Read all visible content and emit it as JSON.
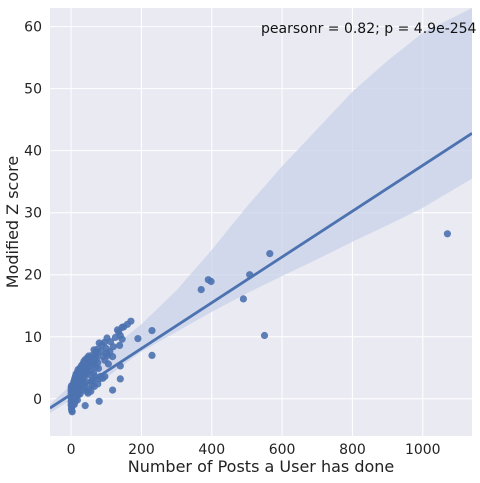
{
  "chart_data": {
    "type": "scatter",
    "xlabel": "Number of Posts a User has done",
    "ylabel": "Modified Z score",
    "xlim": [
      -60,
      1140
    ],
    "ylim": [
      -6,
      63
    ],
    "xticks": [
      0,
      200,
      400,
      600,
      800,
      1000
    ],
    "yticks": [
      0,
      10,
      20,
      30,
      40,
      50,
      60
    ],
    "xtick_labels": [
      "0",
      "200",
      "400",
      "600",
      "800",
      "1000"
    ],
    "ytick_labels": [
      "0",
      "10",
      "20",
      "30",
      "40",
      "50",
      "60"
    ],
    "grid": true,
    "annotation": "pearsonr = 0.82; p = 4.9e-254",
    "regression": {
      "x_start": -60,
      "y_start": -1.5,
      "x_end": 1140,
      "y_end": 42.8
    },
    "confidence_band": {
      "upper": [
        [
          -60,
          -0.9
        ],
        [
          100,
          7.5
        ],
        [
          200,
          12.0
        ],
        [
          300,
          17.5
        ],
        [
          400,
          24.0
        ],
        [
          500,
          31.0
        ],
        [
          600,
          37.5
        ],
        [
          700,
          43.5
        ],
        [
          800,
          49.5
        ],
        [
          900,
          54.5
        ],
        [
          1000,
          59.0
        ],
        [
          1140,
          63.0
        ]
      ],
      "lower": [
        [
          -60,
          -2.3
        ],
        [
          100,
          3.4
        ],
        [
          200,
          7.6
        ],
        [
          300,
          10.8
        ],
        [
          400,
          14.0
        ],
        [
          500,
          17.0
        ],
        [
          600,
          19.8
        ],
        [
          700,
          22.5
        ],
        [
          800,
          25.3
        ],
        [
          900,
          28.0
        ],
        [
          1000,
          30.8
        ],
        [
          1140,
          35.5
        ]
      ]
    },
    "colors": {
      "points": "#4c72b0",
      "line": "#4c72b0",
      "band": "#c8d2e8",
      "plot_bg": "#eaeaf2",
      "grid": "#ffffff"
    },
    "points": [
      [
        1070,
        26.6
      ],
      [
        565,
        23.4
      ],
      [
        508,
        20.0
      ],
      [
        390,
        19.2
      ],
      [
        398,
        18.9
      ],
      [
        370,
        17.6
      ],
      [
        490,
        16.1
      ],
      [
        550,
        10.2
      ],
      [
        230,
        11.0
      ],
      [
        230,
        7.0
      ],
      [
        190,
        9.7
      ],
      [
        170,
        12.5
      ],
      [
        160,
        12.0
      ],
      [
        145,
        11.5
      ],
      [
        135,
        10.8
      ],
      [
        140,
        10.2
      ],
      [
        145,
        9.6
      ],
      [
        138,
        8.6
      ],
      [
        140,
        5.3
      ],
      [
        140,
        3.2
      ],
      [
        118,
        1.4
      ],
      [
        102,
        9.8
      ],
      [
        95,
        9.1
      ],
      [
        100,
        8.1
      ],
      [
        88,
        8.7
      ],
      [
        120,
        8.4
      ],
      [
        110,
        7.6
      ],
      [
        118,
        6.8
      ],
      [
        80,
        9.0
      ],
      [
        75,
        8.0
      ],
      [
        70,
        7.6
      ],
      [
        65,
        7.9
      ],
      [
        60,
        7.0
      ],
      [
        55,
        6.7
      ],
      [
        50,
        6.2
      ],
      [
        48,
        5.7
      ],
      [
        45,
        5.2
      ],
      [
        42,
        5.0
      ],
      [
        40,
        4.6
      ],
      [
        38,
        4.2
      ],
      [
        35,
        4.0
      ],
      [
        30,
        3.6
      ],
      [
        28,
        3.3
      ],
      [
        25,
        3.0
      ],
      [
        22,
        2.6
      ],
      [
        20,
        2.3
      ],
      [
        18,
        2.1
      ],
      [
        15,
        1.7
      ],
      [
        12,
        1.5
      ],
      [
        10,
        1.2
      ],
      [
        8,
        0.9
      ],
      [
        6,
        0.6
      ],
      [
        4,
        0.3
      ],
      [
        2,
        0.0
      ],
      [
        1,
        -0.3
      ],
      [
        3,
        -0.6
      ],
      [
        5,
        -0.9
      ],
      [
        2,
        -1.3
      ],
      [
        1,
        -1.6
      ],
      [
        2,
        -1.9
      ],
      [
        3,
        -2.1
      ],
      [
        0,
        -1.0
      ],
      [
        0,
        -0.5
      ],
      [
        0,
        0.2
      ],
      [
        0,
        0.8
      ],
      [
        0,
        1.3
      ],
      [
        0,
        1.8
      ],
      [
        1,
        2.1
      ],
      [
        2,
        1.4
      ],
      [
        4,
        1.9
      ],
      [
        6,
        2.4
      ],
      [
        8,
        2.8
      ],
      [
        10,
        3.2
      ],
      [
        12,
        3.6
      ],
      [
        14,
        4.0
      ],
      [
        16,
        3.4
      ],
      [
        18,
        4.3
      ],
      [
        20,
        4.7
      ],
      [
        22,
        3.9
      ],
      [
        24,
        4.5
      ],
      [
        26,
        5.0
      ],
      [
        30,
        5.4
      ],
      [
        32,
        4.8
      ],
      [
        34,
        5.6
      ],
      [
        36,
        6.0
      ],
      [
        40,
        6.3
      ],
      [
        44,
        5.8
      ],
      [
        46,
        6.6
      ],
      [
        50,
        6.9
      ],
      [
        52,
        5.2
      ],
      [
        56,
        4.6
      ],
      [
        58,
        5.9
      ],
      [
        62,
        6.2
      ],
      [
        66,
        5.6
      ],
      [
        70,
        5.1
      ],
      [
        72,
        6.4
      ],
      [
        76,
        5.8
      ],
      [
        78,
        4.9
      ],
      [
        84,
        3.6
      ],
      [
        90,
        3.3
      ],
      [
        96,
        3.6
      ],
      [
        80,
        3.2
      ],
      [
        76,
        2.4
      ],
      [
        60,
        2.2
      ],
      [
        50,
        1.6
      ],
      [
        44,
        1.2
      ],
      [
        40,
        2.8
      ],
      [
        36,
        2.0
      ],
      [
        30,
        1.4
      ],
      [
        26,
        0.8
      ],
      [
        20,
        0.6
      ],
      [
        18,
        -0.2
      ],
      [
        14,
        0.3
      ],
      [
        12,
        -0.4
      ],
      [
        9,
        -0.9
      ],
      [
        10,
        0.4
      ],
      [
        7,
        1.6
      ],
      [
        5,
        1.0
      ],
      [
        30,
        2.8
      ],
      [
        34,
        3.4
      ],
      [
        28,
        2.2
      ],
      [
        24,
        1.8
      ],
      [
        16,
        2.6
      ],
      [
        22,
        1.0
      ],
      [
        38,
        2.4
      ],
      [
        42,
        3.8
      ],
      [
        46,
        4.4
      ],
      [
        54,
        3.9
      ],
      [
        58,
        2.9
      ],
      [
        64,
        4.1
      ],
      [
        68,
        3.6
      ],
      [
        48,
        0.9
      ],
      [
        40,
        -1.1
      ],
      [
        80,
        -0.4
      ],
      [
        104,
        7.0
      ],
      [
        112,
        9.2
      ],
      [
        126,
        9.9
      ],
      [
        132,
        11.1
      ],
      [
        150,
        11.6
      ],
      [
        70,
        6.9
      ],
      [
        74,
        7.3
      ],
      [
        86,
        7.7
      ],
      [
        90,
        6.8
      ],
      [
        96,
        6.2
      ],
      [
        100,
        7.3
      ],
      [
        106,
        5.6
      ],
      [
        62,
        3.0
      ],
      [
        56,
        1.2
      ],
      [
        66,
        2.0
      ]
    ]
  }
}
